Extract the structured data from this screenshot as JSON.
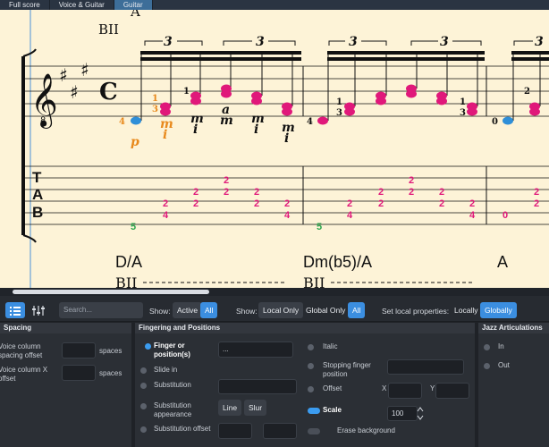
{
  "tabs": [
    {
      "label": "Full score",
      "active": false
    },
    {
      "label": "Voice & Guitar",
      "active": false
    },
    {
      "label": "Guitar",
      "active": true
    }
  ],
  "score": {
    "chord_symbols_top": [
      "A"
    ],
    "barre": "BII",
    "time_signature": "C",
    "octave_marker": "8",
    "tuplet": "3",
    "fingerings_lh": [
      "4",
      "1",
      "3",
      "1",
      "4",
      "1",
      "3",
      "1",
      "3",
      "0",
      "2"
    ],
    "fingerings_rh": [
      "p",
      "m",
      "i",
      "m",
      "i",
      "a",
      "m",
      "m",
      "i",
      "m",
      "i"
    ],
    "tab_label": "TAB",
    "tab_numbers": [
      "2",
      "2",
      "4",
      "2",
      "2",
      "2",
      "2",
      "4",
      "5",
      "2",
      "2",
      "0"
    ],
    "chord_symbols_bottom": [
      "D/A",
      "Dm(b5)/A",
      "A"
    ],
    "barre_bottom": "BII"
  },
  "toolbar": {
    "search_placeholder": "Search...",
    "show_label_1": "Show:",
    "active_label": "Active",
    "all_label": "All",
    "show_label_2": "Show:",
    "local_only_label": "Local Only",
    "global_only_label": "Global Only",
    "all_label_2": "All",
    "set_local_label": "Set local properties:",
    "locally_label": "Locally",
    "globally_label": "Globally"
  },
  "spacing_panel": {
    "title": "Spacing",
    "row1_label": "Voice column spacing offset",
    "row1_unit": "spaces",
    "row2_label": "Voice column X offset",
    "row2_unit": "spaces"
  },
  "fingering_panel": {
    "title": "Fingering and Positions",
    "finger_label": "Finger or position(s)",
    "finger_value": "...",
    "slide_in_label": "Slide in",
    "substitution_label": "Substitution",
    "substitution_appearance_label": "Substitution appearance",
    "line_label": "Line",
    "slur_label": "Slur",
    "substitution_offset_label": "Substitution offset",
    "italic_label": "Italic",
    "stopping_label": "Stopping finger position",
    "offset_label": "Offset",
    "x_label": "X",
    "y_label": "Y",
    "scale_label": "Scale",
    "scale_value": "100",
    "erase_label": "Erase background"
  },
  "jazz_panel": {
    "title": "Jazz Articulations",
    "in_label": "In",
    "out_label": "Out"
  }
}
